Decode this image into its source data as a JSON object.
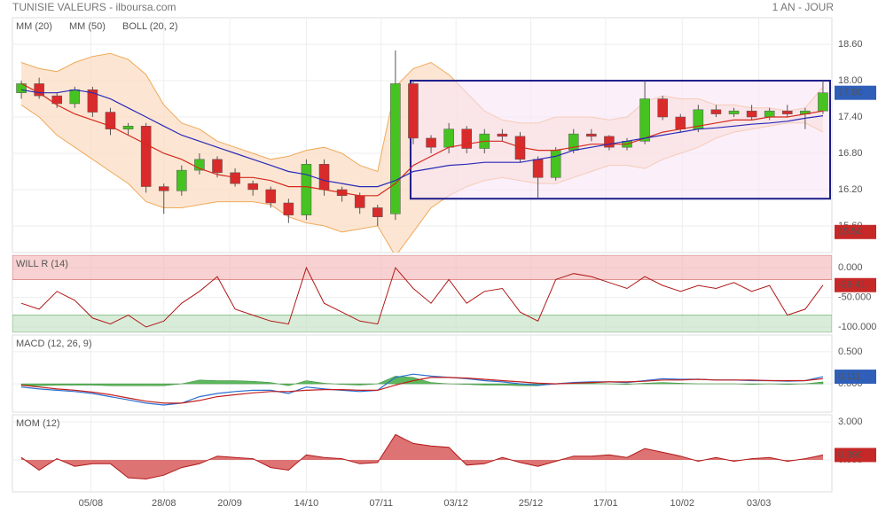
{
  "header": {
    "source": "TUNISIE VALEURS - ilboursa.com",
    "period": "1 AN - JOUR"
  },
  "chart_data": [
    {
      "type": "candlestick",
      "xlim": [
        -0.5,
        45.5
      ],
      "ylim": [
        15.16,
        19.04
      ],
      "yticks": [
        {
          "value": 18.6,
          "label": "18.60"
        },
        {
          "value": 18.0,
          "label": "18.00"
        },
        {
          "value": 17.4,
          "label": "17.40"
        },
        {
          "value": 16.8,
          "label": "16.80"
        },
        {
          "value": 16.2,
          "label": "16.20"
        },
        {
          "value": 15.6,
          "label": "15.60"
        }
      ],
      "up_color": "#46c320",
      "down_color": "#d92b2b",
      "ohlc": {
        "open": [
          17.8,
          17.95,
          17.75,
          17.62,
          17.85,
          17.48,
          17.2,
          17.25,
          16.25,
          16.18,
          16.52,
          16.7,
          16.48,
          16.3,
          16.2,
          15.98,
          15.78,
          16.62,
          16.2,
          16.1,
          15.9,
          15.8,
          17.95,
          17.05,
          16.9,
          17.2,
          16.88,
          17.12,
          17.08,
          16.7,
          16.4,
          16.85,
          17.12,
          17.08,
          16.9,
          17.0,
          17.7,
          17.4,
          17.2,
          17.52,
          17.45,
          17.5,
          17.4,
          17.5,
          17.45,
          17.5
        ],
        "high": [
          18.0,
          18.05,
          17.8,
          17.9,
          17.9,
          17.55,
          17.3,
          17.3,
          16.3,
          16.6,
          16.8,
          16.75,
          16.55,
          16.35,
          16.25,
          16.05,
          16.7,
          16.7,
          16.25,
          16.15,
          15.95,
          18.5,
          18.0,
          17.1,
          17.3,
          17.25,
          17.2,
          17.2,
          17.15,
          16.75,
          16.9,
          17.2,
          17.2,
          17.1,
          17.05,
          18.0,
          17.75,
          17.45,
          17.6,
          17.6,
          17.55,
          17.6,
          17.55,
          17.6,
          17.55,
          18.0
        ],
        "low": [
          17.7,
          17.7,
          17.55,
          17.55,
          17.4,
          17.1,
          17.1,
          16.15,
          15.8,
          16.1,
          16.45,
          16.4,
          16.25,
          16.1,
          15.9,
          15.65,
          15.7,
          16.1,
          16.0,
          15.8,
          15.6,
          15.7,
          16.95,
          16.8,
          16.8,
          16.8,
          16.8,
          17.0,
          16.65,
          16.05,
          16.35,
          16.8,
          17.0,
          16.85,
          16.85,
          16.95,
          17.35,
          17.15,
          17.15,
          17.4,
          17.4,
          17.35,
          17.35,
          17.4,
          17.2,
          17.45
        ],
        "close": [
          17.95,
          17.75,
          17.62,
          17.85,
          17.48,
          17.2,
          17.25,
          16.25,
          16.18,
          16.52,
          16.7,
          16.48,
          16.3,
          16.2,
          15.98,
          15.78,
          16.62,
          16.2,
          16.1,
          15.9,
          15.75,
          17.95,
          17.05,
          16.9,
          17.2,
          16.88,
          17.12,
          17.08,
          16.7,
          16.4,
          16.85,
          17.12,
          17.08,
          16.9,
          17.0,
          17.7,
          17.4,
          17.2,
          17.52,
          17.45,
          17.5,
          17.4,
          17.5,
          17.45,
          17.5,
          17.8
        ]
      },
      "bollinger": {
        "name": "BOLL (20, 2)",
        "color": "#f0a95b",
        "fill": "#fbdcc0",
        "upper": [
          18.3,
          18.2,
          18.15,
          18.3,
          18.4,
          18.45,
          18.35,
          18.1,
          17.6,
          17.3,
          17.2,
          17.0,
          16.9,
          16.8,
          16.7,
          16.75,
          16.85,
          16.9,
          16.8,
          16.6,
          16.5,
          17.9,
          18.2,
          18.3,
          18.1,
          17.8,
          17.5,
          17.35,
          17.3,
          17.3,
          17.4,
          17.4,
          17.4,
          17.35,
          17.4,
          17.65,
          17.75,
          17.7,
          17.7,
          17.6,
          17.6,
          17.55,
          17.55,
          17.5,
          17.55,
          17.9
        ],
        "lower": [
          17.6,
          17.4,
          17.1,
          16.9,
          16.7,
          16.5,
          16.3,
          16.0,
          15.9,
          15.9,
          15.95,
          16.0,
          16.0,
          16.0,
          15.95,
          15.75,
          15.65,
          15.6,
          15.5,
          15.55,
          15.6,
          15.1,
          15.5,
          15.9,
          16.1,
          16.25,
          16.35,
          16.4,
          16.35,
          16.3,
          16.3,
          16.4,
          16.5,
          16.6,
          16.6,
          16.55,
          16.7,
          16.8,
          16.9,
          17.05,
          17.15,
          17.2,
          17.25,
          17.3,
          17.3,
          17.15
        ]
      },
      "series": [
        {
          "name": "MM (20)",
          "color": "#d42a1e",
          "values": [
            17.95,
            17.8,
            17.6,
            17.45,
            17.35,
            17.25,
            17.1,
            16.95,
            16.8,
            16.7,
            16.55,
            16.45,
            16.4,
            16.4,
            16.35,
            16.25,
            16.25,
            16.2,
            16.15,
            16.1,
            16.1,
            16.3,
            16.6,
            16.75,
            16.9,
            16.95,
            17.0,
            17.0,
            16.9,
            16.85,
            16.85,
            16.9,
            16.95,
            16.95,
            16.95,
            17.05,
            17.15,
            17.2,
            17.25,
            17.3,
            17.35,
            17.35,
            17.4,
            17.4,
            17.45,
            17.5
          ]
        },
        {
          "name": "MM (50)",
          "color": "#2a2ab8",
          "values": [
            17.85,
            17.8,
            17.8,
            17.85,
            17.8,
            17.7,
            17.55,
            17.4,
            17.25,
            17.1,
            17.0,
            16.9,
            16.8,
            16.7,
            16.6,
            16.5,
            16.45,
            16.35,
            16.3,
            16.25,
            16.25,
            16.35,
            16.5,
            16.55,
            16.6,
            16.62,
            16.65,
            16.65,
            16.65,
            16.7,
            16.75,
            16.85,
            16.9,
            16.95,
            17.0,
            17.05,
            17.1,
            17.15,
            17.2,
            17.22,
            17.25,
            17.28,
            17.3,
            17.33,
            17.38,
            17.42
          ]
        }
      ],
      "box": {
        "x": [
          21.85,
          45.4
        ],
        "y": [
          16.05,
          18.0
        ],
        "color": "#1c1c8c",
        "fill": "#f9e4f6"
      },
      "badges": [
        {
          "value": 17.8,
          "label": "17.80",
          "color": "#2f5fb8"
        },
        {
          "value": 15.5,
          "label": "15.50",
          "color": "#c62828"
        }
      ]
    },
    {
      "type": "willr",
      "title": "WILL R (14)",
      "xlim": [
        -0.5,
        45.5
      ],
      "ylim": [
        -109,
        21
      ],
      "yticks": [
        {
          "value": 0,
          "label": "0.000"
        },
        {
          "value": -50,
          "label": "-50.000"
        },
        {
          "value": -100,
          "label": "-100.000"
        }
      ],
      "overbought": -20,
      "oversold": -80,
      "color": "#b01818",
      "values": [
        -60,
        -70,
        -40,
        -55,
        -85,
        -95,
        -80,
        -100,
        -90,
        -60,
        -40,
        -15,
        -70,
        -80,
        -90,
        -95,
        0,
        -60,
        -75,
        -90,
        -95,
        0,
        -35,
        -60,
        -20,
        -60,
        -40,
        -35,
        -75,
        -90,
        -20,
        -10,
        -15,
        -25,
        -35,
        -15,
        -30,
        -40,
        -30,
        -35,
        -25,
        -40,
        -30,
        -80,
        -70,
        -29.41
      ],
      "badges": [
        {
          "value": -29.41,
          "label": "-29.41",
          "color": "#c62828"
        }
      ]
    },
    {
      "type": "macd",
      "title": "MACD (12, 26, 9)",
      "xlim": [
        -0.5,
        45.5
      ],
      "ylim": [
        -0.44,
        0.76
      ],
      "yticks": [
        {
          "value": 0.5,
          "label": "0.500"
        },
        {
          "value": 0,
          "label": "0.000"
        }
      ],
      "series": [
        {
          "color": "#2a6fd0",
          "values": [
            -0.05,
            -0.08,
            -0.1,
            -0.12,
            -0.15,
            -0.2,
            -0.25,
            -0.3,
            -0.33,
            -0.3,
            -0.2,
            -0.15,
            -0.12,
            -0.1,
            -0.1,
            -0.15,
            -0.05,
            -0.08,
            -0.1,
            -0.12,
            -0.1,
            0.1,
            0.15,
            0.12,
            0.1,
            0.08,
            0.05,
            0.03,
            0.0,
            -0.02,
            0.0,
            0.02,
            0.03,
            0.03,
            0.02,
            0.05,
            0.08,
            0.07,
            0.07,
            0.06,
            0.06,
            0.05,
            0.05,
            0.04,
            0.05,
            0.111
          ]
        },
        {
          "color": "#c21f1f",
          "values": [
            -0.02,
            -0.05,
            -0.08,
            -0.1,
            -0.13,
            -0.17,
            -0.22,
            -0.27,
            -0.3,
            -0.3,
            -0.26,
            -0.2,
            -0.17,
            -0.14,
            -0.12,
            -0.12,
            -0.1,
            -0.09,
            -0.09,
            -0.1,
            -0.1,
            -0.02,
            0.05,
            0.1,
            0.1,
            0.09,
            0.07,
            0.05,
            0.03,
            0.01,
            0.0,
            0.01,
            0.02,
            0.03,
            0.03,
            0.04,
            0.06,
            0.06,
            0.07,
            0.06,
            0.06,
            0.06,
            0.05,
            0.05,
            0.05,
            0.08
          ]
        }
      ],
      "histogram": {
        "color": "#5cb85c",
        "values": [
          -0.03,
          -0.03,
          -0.02,
          -0.02,
          -0.02,
          -0.03,
          -0.03,
          -0.03,
          -0.03,
          0,
          0.06,
          0.05,
          0.05,
          0.04,
          0.02,
          -0.03,
          0.05,
          0.01,
          -0.01,
          -0.02,
          0,
          0.12,
          0.1,
          0.02,
          0,
          -0.01,
          -0.02,
          -0.02,
          -0.03,
          -0.03,
          0,
          0.01,
          0.01,
          0,
          -0.01,
          0.01,
          0.02,
          0.01,
          0,
          0,
          0,
          -0.01,
          0,
          -0.01,
          0,
          0.031
        ]
      },
      "badges": [
        {
          "value": 0.111,
          "label": "0.111",
          "color": "#2f5fb8"
        }
      ]
    },
    {
      "type": "area",
      "title": "MOM (12)",
      "xlim": [
        -0.5,
        45.5
      ],
      "ylim": [
        -2.51,
        3.56
      ],
      "yticks": [
        {
          "value": 3,
          "label": "3.000"
        },
        {
          "value": 0,
          "label": "0.000"
        }
      ],
      "color": "#b01818",
      "fill": "#dd7373",
      "values": [
        0.2,
        -0.8,
        0.1,
        -0.5,
        -0.3,
        -0.3,
        -1.4,
        -1.5,
        -1.2,
        -0.6,
        -0.3,
        0.3,
        0.2,
        0.1,
        -0.6,
        -0.8,
        0.4,
        0.2,
        0.1,
        -0.3,
        -0.2,
        2.0,
        1.3,
        1.1,
        1.0,
        -0.4,
        -0.3,
        0.2,
        -0.2,
        -0.5,
        -0.1,
        0.3,
        0.3,
        0.4,
        0.2,
        0.9,
        0.6,
        0.3,
        -0.1,
        0.2,
        -0.1,
        0.1,
        0.2,
        -0.1,
        0.1,
        0.39
      ],
      "xticks": [
        {
          "value": 3.9,
          "label": "05/08"
        },
        {
          "value": 8.0,
          "label": "28/08"
        },
        {
          "value": 11.7,
          "label": "20/09"
        },
        {
          "value": 16.0,
          "label": "14/10"
        },
        {
          "value": 20.2,
          "label": "07/11"
        },
        {
          "value": 24.4,
          "label": "03/12"
        },
        {
          "value": 28.6,
          "label": "25/12"
        },
        {
          "value": 32.8,
          "label": "17/01"
        },
        {
          "value": 37.1,
          "label": "10/02"
        },
        {
          "value": 41.4,
          "label": "03/03"
        }
      ],
      "badges": [
        {
          "value": 0.39,
          "label": "0.390",
          "color": "#c62828"
        }
      ]
    }
  ]
}
